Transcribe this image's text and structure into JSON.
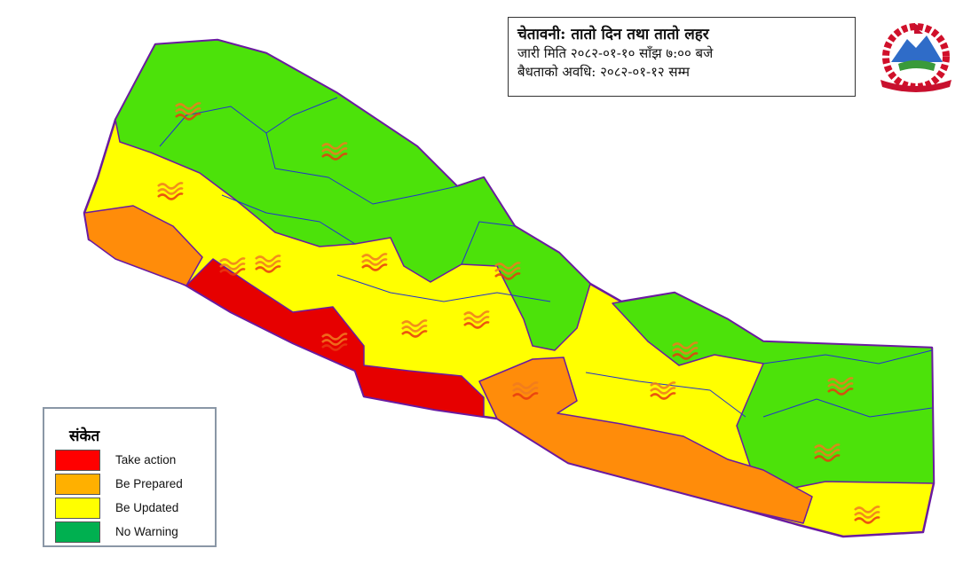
{
  "header": {
    "title": "चेतावनी: तातो दिन तथा तातो लहर",
    "issued": "जारी मिति २०८२-०१-१० साँझ ७:०० बजे",
    "validity": "बैधताको अवधि: २०८२-०१-१२ सम्म"
  },
  "emblem": {
    "name": "nepal-government-emblem"
  },
  "legend": {
    "title": "संकेत",
    "items": [
      {
        "label": "Take action",
        "color": "#ff0000"
      },
      {
        "label": "Be Prepared",
        "color": "#ffb000"
      },
      {
        "label": "Be Updated",
        "color": "#ffff00"
      },
      {
        "label": "No Warning",
        "color": "#00b050"
      }
    ]
  },
  "map_colors": {
    "take_action": "#e60000",
    "be_prepared": "#ff8c0a",
    "be_updated": "#ffff00",
    "no_warning": "#4ce20a",
    "border": "#6a1aa0",
    "inner_border": "#2233cc"
  },
  "heat_wave_icon": "heat-wave-icon"
}
